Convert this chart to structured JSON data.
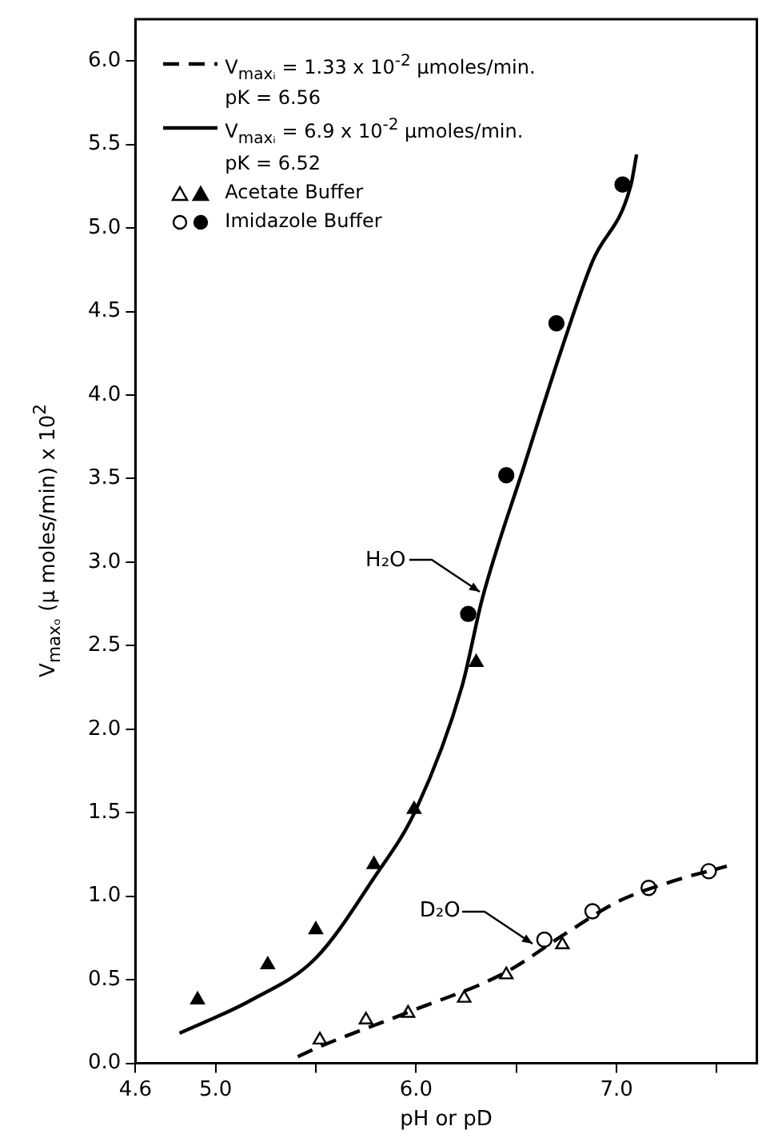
{
  "chart_data": {
    "type": "scatter",
    "xlabel": "pH or pD",
    "ylabel": "V$_{maxₒ}$ (μ moles/min) x 10$^{2}$",
    "xlim": [
      4.6,
      7.7
    ],
    "ylim": [
      0,
      6.25
    ],
    "xticks": [
      4.6,
      {
        "value": 5,
        "label": "5.0"
      },
      {
        "value": 5.5,
        "label": null
      },
      {
        "value": 6,
        "label": "6.0"
      },
      {
        "value": 6.5,
        "label": null
      },
      {
        "value": 7,
        "label": "7.0"
      },
      {
        "value": 7.5,
        "label": null
      }
    ],
    "yticks": [
      {
        "value": 0,
        "label": "0.0"
      },
      0.5,
      {
        "value": 1,
        "label": "1.0"
      },
      1.5,
      {
        "value": 2,
        "label": "2.0"
      },
      2.5,
      {
        "value": 3,
        "label": "3.0"
      },
      3.5,
      {
        "value": 4,
        "label": "4.0"
      },
      4.5,
      {
        "value": 5,
        "label": "5.0"
      },
      5.5,
      {
        "value": 6,
        "label": "6.0"
      }
    ],
    "grid": false,
    "legend": "top left",
    "series": [
      {
        "type": "line",
        "name": "V$_{maxᵢ}$ = 1.33 x 10$^{-2}$ μmoles/min.\npK = 6.56",
        "color": "#000000",
        "line_style": "dashed",
        "marker": "none",
        "x": [
          5.41,
          5.52,
          5.97,
          6.44,
          6.75,
          7.01,
          7.28,
          7.55
        ],
        "values": [
          0.04,
          0.1,
          0.31,
          0.54,
          0.78,
          0.97,
          1.09,
          1.18
        ]
      },
      {
        "type": "line",
        "name": "V$_{maxᵢ}$ = 6.9 x 10$^{-2}$ μmoles/min.\npK = 6.52",
        "color": "#000000",
        "line_style": "solid",
        "marker": "none",
        "x": [
          4.82,
          5.18,
          5.5,
          5.79,
          6.0,
          6.23,
          6.33,
          6.54,
          6.73,
          6.88,
          7.07,
          7.1
        ],
        "values": [
          0.18,
          0.38,
          0.63,
          1.11,
          1.52,
          2.26,
          2.78,
          3.58,
          4.29,
          4.8,
          5.25,
          5.44
        ]
      },
      {
        "color": "#ffffff",
        "marker": "triangle",
        "x": [
          5.52,
          5.75,
          5.96,
          6.24,
          6.45,
          6.73
        ],
        "values": [
          0.14,
          0.26,
          0.3,
          0.39,
          0.53,
          0.71
        ]
      },
      {
        "name": "Acetate Buffer",
        "color": "#000000",
        "marker": "triangle",
        "x": [
          4.91,
          5.26,
          5.5,
          5.79,
          5.99,
          6.3
        ],
        "values": [
          0.38,
          0.59,
          0.8,
          1.19,
          1.52,
          2.4
        ]
      },
      {
        "color": "#ffffff",
        "marker": "circle",
        "x": [
          6.64,
          6.88,
          7.16,
          7.46
        ],
        "values": [
          0.74,
          0.91,
          1.05,
          1.15
        ]
      },
      {
        "name": "Imidazole Buffer",
        "color": "#000000",
        "marker": "circle",
        "x": [
          6.26,
          6.45,
          6.7,
          7.03
        ],
        "values": [
          2.69,
          3.52,
          4.43,
          5.26
        ]
      }
    ],
    "annotations": [
      {
        "text": "H₂O",
        "x": 6.33,
        "y": 2.8
      },
      {
        "text": "D₂O",
        "x": 6.6,
        "y": 0.7
      }
    ]
  }
}
